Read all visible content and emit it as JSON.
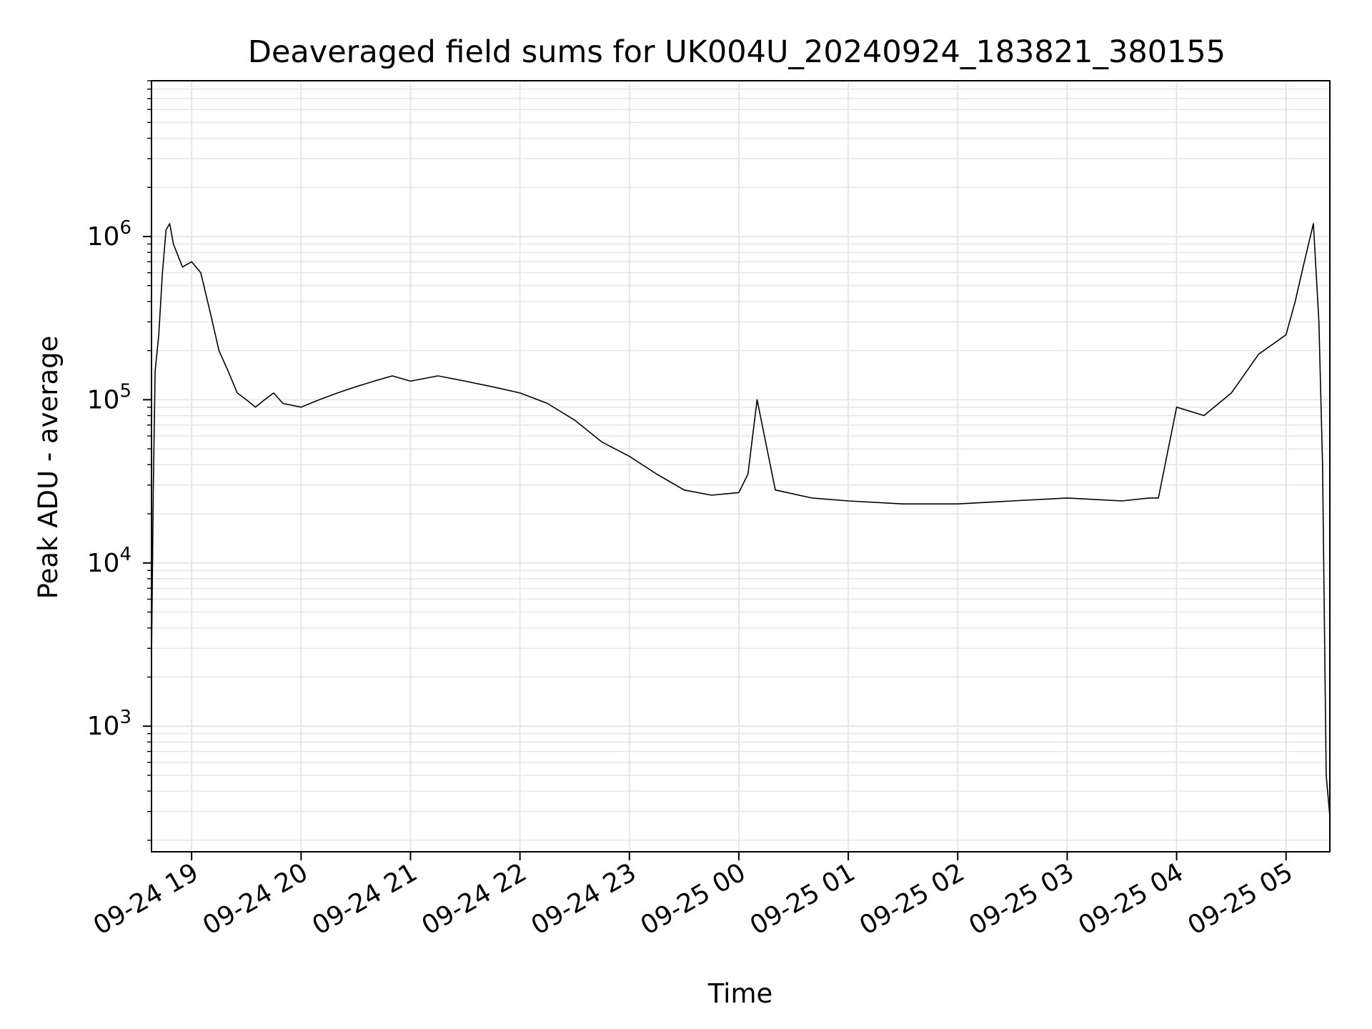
{
  "chart_data": {
    "type": "line",
    "title": "Deaveraged field sums for UK004U_20240924_183821_380155",
    "xlabel": "Time",
    "ylabel": "Peak ADU - average",
    "yscale": "log",
    "ylim": [
      170,
      9000000
    ],
    "xlim": [
      "2024-09-24 18:38",
      "2024-09-25 05:24"
    ],
    "grid": true,
    "line_color": "#000000",
    "grid_color": "#e6e6e6",
    "x_ticks": [
      {
        "value": "2024-09-24 19:00",
        "label": "09-24 19"
      },
      {
        "value": "2024-09-24 20:00",
        "label": "09-24 20"
      },
      {
        "value": "2024-09-24 21:00",
        "label": "09-24 21"
      },
      {
        "value": "2024-09-24 22:00",
        "label": "09-24 22"
      },
      {
        "value": "2024-09-24 23:00",
        "label": "09-24 23"
      },
      {
        "value": "2024-09-25 00:00",
        "label": "09-25 00"
      },
      {
        "value": "2024-09-25 01:00",
        "label": "09-25 01"
      },
      {
        "value": "2024-09-25 02:00",
        "label": "09-25 02"
      },
      {
        "value": "2024-09-25 03:00",
        "label": "09-25 03"
      },
      {
        "value": "2024-09-25 04:00",
        "label": "09-25 04"
      },
      {
        "value": "2024-09-25 05:00",
        "label": "09-25 05"
      }
    ],
    "y_ticks": [
      {
        "value": 1000,
        "base": "10",
        "exp": "3"
      },
      {
        "value": 10000,
        "base": "10",
        "exp": "4"
      },
      {
        "value": 100000,
        "base": "10",
        "exp": "5"
      },
      {
        "value": 1000000,
        "base": "10",
        "exp": "6"
      }
    ],
    "series": [
      {
        "x": [
          "2024-09-24 18:38",
          "2024-09-24 18:39",
          "2024-09-24 18:40",
          "2024-09-24 18:42",
          "2024-09-24 18:44",
          "2024-09-24 18:46",
          "2024-09-24 18:48",
          "2024-09-24 18:50",
          "2024-09-24 18:55",
          "2024-09-24 19:00",
          "2024-09-24 19:05",
          "2024-09-24 19:10",
          "2024-09-24 19:15",
          "2024-09-24 19:20",
          "2024-09-24 19:25",
          "2024-09-24 19:30",
          "2024-09-24 19:35",
          "2024-09-24 19:40",
          "2024-09-24 19:45",
          "2024-09-24 19:50",
          "2024-09-24 20:00",
          "2024-09-24 20:10",
          "2024-09-24 20:20",
          "2024-09-24 20:30",
          "2024-09-24 20:40",
          "2024-09-24 20:50",
          "2024-09-24 21:00",
          "2024-09-24 21:15",
          "2024-09-24 21:30",
          "2024-09-24 21:45",
          "2024-09-24 22:00",
          "2024-09-24 22:15",
          "2024-09-24 22:30",
          "2024-09-24 22:45",
          "2024-09-24 23:00",
          "2024-09-24 23:15",
          "2024-09-24 23:30",
          "2024-09-24 23:45",
          "2024-09-25 00:00",
          "2024-09-25 00:05",
          "2024-09-25 00:10",
          "2024-09-25 00:20",
          "2024-09-25 00:40",
          "2024-09-25 01:00",
          "2024-09-25 01:30",
          "2024-09-25 02:00",
          "2024-09-25 02:30",
          "2024-09-25 03:00",
          "2024-09-25 03:30",
          "2024-09-25 03:45",
          "2024-09-25 03:50",
          "2024-09-25 04:00",
          "2024-09-25 04:15",
          "2024-09-25 04:30",
          "2024-09-25 04:45",
          "2024-09-25 05:00",
          "2024-09-25 05:05",
          "2024-09-25 05:10",
          "2024-09-25 05:15",
          "2024-09-25 05:18",
          "2024-09-25 05:20",
          "2024-09-25 05:22",
          "2024-09-25 05:24"
        ],
        "y": [
          2500,
          30000,
          150000,
          250000,
          600000,
          1100000,
          1200000,
          900000,
          650000,
          700000,
          600000,
          350000,
          200000,
          150000,
          110000,
          100000,
          90000,
          100000,
          110000,
          95000,
          90000,
          100000,
          110000,
          120000,
          130000,
          140000,
          130000,
          140000,
          130000,
          120000,
          110000,
          95000,
          75000,
          55000,
          45000,
          35000,
          28000,
          26000,
          27000,
          35000,
          100000,
          28000,
          25000,
          24000,
          23000,
          23000,
          24000,
          25000,
          24000,
          25000,
          25000,
          90000,
          80000,
          110000,
          190000,
          250000,
          400000,
          700000,
          1200000,
          300000,
          40000,
          500,
          280
        ]
      }
    ]
  }
}
